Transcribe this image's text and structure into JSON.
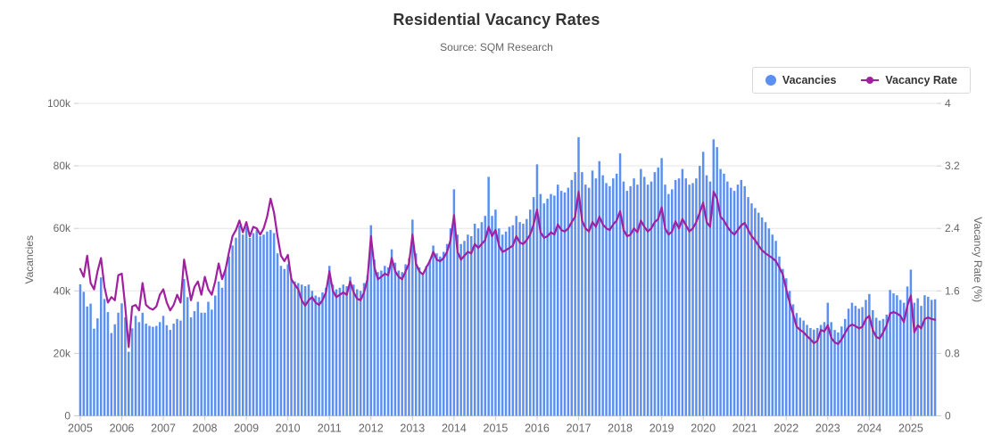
{
  "header": {
    "title": "Residential Vacancy Rates",
    "subtitle": "Source: SQM Research"
  },
  "legend": {
    "items": [
      {
        "label": "Vacancies",
        "marker": "circle",
        "color": "#5b8ff0"
      },
      {
        "label": "Vacancy Rate",
        "marker": "line-circle",
        "color": "#a0209f"
      }
    ]
  },
  "chart_data": {
    "type": "bar+line combo, monthly time series",
    "title": "Residential Vacancy Rates",
    "subtitle": "Source: SQM Research",
    "grid": true,
    "legend_position": "top-right",
    "grid_color": "#e6e6e6",
    "axis_color": "#cccccc",
    "text_color": "#666666",
    "title_color": "#333333",
    "x": {
      "start": "2005-01",
      "interval": "month",
      "count": 248,
      "year_labels": [
        "2005",
        "2006",
        "2007",
        "2008",
        "2009",
        "2010",
        "2011",
        "2012",
        "2013",
        "2014",
        "2015",
        "2016",
        "2017",
        "2018",
        "2019",
        "2020",
        "2021",
        "2022",
        "2023",
        "2024",
        "2025"
      ]
    },
    "axes": {
      "left": {
        "title": "Vacancies",
        "ticks": [
          "0",
          "20k",
          "40k",
          "60k",
          "80k",
          "100k"
        ],
        "min": 0,
        "max": 100,
        "unit": "thousands"
      },
      "right": {
        "title": "Vacancy Rate (%)",
        "ticks": [
          "0",
          "0.8",
          "1.6",
          "2.4",
          "3.2",
          "4"
        ],
        "min": 0,
        "max": 4,
        "unit": "%"
      }
    },
    "series": [
      {
        "name": "Vacancies",
        "type": "bar",
        "axis": "left",
        "color": "#5b8ff0",
        "unit": "thousands",
        "values": [
          42.1,
          39.7,
          35.0,
          35.9,
          27.9,
          31.2,
          44.3,
          37.4,
          33.2,
          26.5,
          29.3,
          33.0,
          36.0,
          31.5,
          20.5,
          28.0,
          32.0,
          30.0,
          33.0,
          29.5,
          28.8,
          28.5,
          28.8,
          30.0,
          32.0,
          29.0,
          27.5,
          29.5,
          31.0,
          30.5,
          43.8,
          38.0,
          31.5,
          33.5,
          36.5,
          33.0,
          33.0,
          36.5,
          34.0,
          38.5,
          43.0,
          41.0,
          47.0,
          51.0,
          54.5,
          57.0,
          61.0,
          58.0,
          60.5,
          57.0,
          58.5,
          59.5,
          57.5,
          58.0,
          59.0,
          59.5,
          58.5,
          52.0,
          48.0,
          47.0,
          48.5,
          44.0,
          43.0,
          42.5,
          42.0,
          41.5,
          42.0,
          40.0,
          38.5,
          38.0,
          39.5,
          41.0,
          48.0,
          42.0,
          40.5,
          41.0,
          42.0,
          41.5,
          44.5,
          42.0,
          40.5,
          40.0,
          42.5,
          45.0,
          61.0,
          50.0,
          46.0,
          46.5,
          48.0,
          47.5,
          53.3,
          49.0,
          46.5,
          46.0,
          48.5,
          50.5,
          62.8,
          52.0,
          47.5,
          45.0,
          48.0,
          50.0,
          54.5,
          52.0,
          51.0,
          52.5,
          55.0,
          60.0,
          72.5,
          58.0,
          55.0,
          56.0,
          58.0,
          57.5,
          61.5,
          60.0,
          62.0,
          64.0,
          76.5,
          64.0,
          66.0,
          60.0,
          58.0,
          59.0,
          60.5,
          61.0,
          64.0,
          62.0,
          61.5,
          63.0,
          66.0,
          70.0,
          80.5,
          71.0,
          68.0,
          69.5,
          71.0,
          70.5,
          74.0,
          72.0,
          71.5,
          73.0,
          75.5,
          78.0,
          89.2,
          78.0,
          74.0,
          73.0,
          78.5,
          76.0,
          81.5,
          77.0,
          74.5,
          73.5,
          76.0,
          77.5,
          84.0,
          75.0,
          72.0,
          73.5,
          76.0,
          74.0,
          79.0,
          76.5,
          74.0,
          75.0,
          78.0,
          79.5,
          82.5,
          74.0,
          71.0,
          72.5,
          75.5,
          76.0,
          79.0,
          76.0,
          74.0,
          74.5,
          76.0,
          80.0,
          84.5,
          77.0,
          75.0,
          88.5,
          86.0,
          79.0,
          77.5,
          75.0,
          73.0,
          72.0,
          74.0,
          75.5,
          73.5,
          70.0,
          68.0,
          66.5,
          65.0,
          63.5,
          62.0,
          60.0,
          58.0,
          56.0,
          51.0,
          47.0,
          44.0,
          40.0,
          35.7,
          32.9,
          31.4,
          30.5,
          29.1,
          28.1,
          27.6,
          28.1,
          29.1,
          30.0,
          36.2,
          30.0,
          27.5,
          26.7,
          28.6,
          31.0,
          34.3,
          36.2,
          35.2,
          34.3,
          34.8,
          37.1,
          39.0,
          33.8,
          31.4,
          30.5,
          31.0,
          32.4,
          40.3,
          39.2,
          38.6,
          37.1,
          36.2,
          41.4,
          46.8,
          36.2,
          37.6,
          35.2,
          38.6,
          38.1,
          37.1,
          37.3
        ]
      },
      {
        "name": "Vacancy Rate",
        "type": "line",
        "axis": "right",
        "color": "#a0209f",
        "unit": "%",
        "values": [
          1.88,
          1.78,
          2.05,
          1.7,
          1.62,
          1.85,
          2.02,
          1.65,
          1.45,
          1.52,
          1.48,
          1.8,
          1.82,
          1.4,
          0.88,
          1.4,
          1.42,
          1.35,
          1.7,
          1.42,
          1.38,
          1.36,
          1.4,
          1.55,
          1.62,
          1.45,
          1.35,
          1.42,
          1.55,
          1.45,
          2.0,
          1.75,
          1.48,
          1.65,
          1.72,
          1.55,
          1.78,
          1.62,
          1.55,
          1.72,
          1.95,
          1.75,
          1.88,
          2.1,
          2.3,
          2.38,
          2.5,
          2.35,
          2.48,
          2.3,
          2.42,
          2.4,
          2.32,
          2.4,
          2.55,
          2.78,
          2.6,
          2.3,
          2.05,
          1.98,
          2.06,
          1.75,
          1.68,
          1.62,
          1.48,
          1.41,
          1.48,
          1.52,
          1.45,
          1.42,
          1.48,
          1.58,
          1.85,
          1.6,
          1.52,
          1.55,
          1.58,
          1.55,
          1.72,
          1.58,
          1.5,
          1.48,
          1.58,
          1.75,
          2.3,
          1.9,
          1.75,
          1.78,
          1.82,
          1.8,
          2.02,
          1.85,
          1.78,
          1.75,
          1.85,
          1.95,
          2.32,
          1.95,
          1.85,
          1.81,
          1.9,
          1.98,
          2.1,
          2.0,
          1.98,
          2.02,
          2.1,
          2.25,
          2.57,
          2.1,
          2.0,
          2.05,
          2.1,
          2.08,
          2.2,
          2.15,
          2.2,
          2.25,
          2.42,
          2.3,
          2.38,
          2.18,
          2.1,
          2.12,
          2.15,
          2.18,
          2.3,
          2.22,
          2.2,
          2.25,
          2.32,
          2.45,
          2.64,
          2.35,
          2.28,
          2.3,
          2.35,
          2.32,
          2.45,
          2.38,
          2.36,
          2.4,
          2.48,
          2.55,
          2.87,
          2.5,
          2.4,
          2.36,
          2.48,
          2.42,
          2.55,
          2.45,
          2.4,
          2.38,
          2.45,
          2.5,
          2.62,
          2.38,
          2.3,
          2.32,
          2.4,
          2.35,
          2.5,
          2.42,
          2.36,
          2.4,
          2.48,
          2.52,
          2.67,
          2.4,
          2.32,
          2.36,
          2.49,
          2.4,
          2.52,
          2.44,
          2.36,
          2.4,
          2.48,
          2.6,
          2.73,
          2.48,
          2.42,
          2.87,
          2.78,
          2.55,
          2.5,
          2.42,
          2.36,
          2.32,
          2.38,
          2.44,
          2.47,
          2.38,
          2.3,
          2.25,
          2.18,
          2.12,
          2.08,
          2.05,
          2.02,
          1.98,
          1.9,
          1.81,
          1.62,
          1.45,
          1.3,
          1.14,
          1.1,
          1.07,
          1.02,
          0.98,
          0.93,
          0.96,
          1.1,
          1.08,
          1.16,
          1.0,
          0.94,
          0.92,
          0.98,
          1.06,
          1.14,
          1.17,
          1.15,
          1.12,
          1.14,
          1.24,
          1.28,
          1.1,
          1.01,
          0.99,
          1.07,
          1.16,
          1.31,
          1.33,
          1.31,
          1.28,
          1.2,
          1.41,
          1.54,
          1.07,
          1.16,
          1.12,
          1.24,
          1.26,
          1.24,
          1.23
        ]
      }
    ]
  }
}
